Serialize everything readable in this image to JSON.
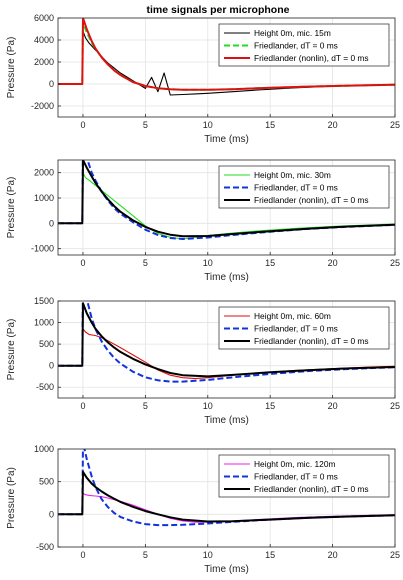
{
  "title": "time signals per microphone",
  "chart_data": [
    {
      "type": "line",
      "xlabel": "Time (ms)",
      "ylabel": "Pressure (Pa)",
      "xlim": [
        -2,
        25
      ],
      "ylim": [
        -3000,
        6000
      ],
      "xticks": [
        0,
        5,
        10,
        15,
        20,
        25
      ],
      "yticks": [
        -2000,
        0,
        2000,
        4000,
        6000
      ],
      "ytick_labels": [
        "-2000",
        "0",
        "2000",
        "4000",
        "6000"
      ],
      "legend": "top-right",
      "grid": true,
      "series": [
        {
          "name": "Height 0m, mic. 15m",
          "color": "#000000",
          "style": "solid",
          "x": [
            -2,
            -0.05,
            0,
            0.2,
            0.5,
            1,
            1.5,
            2,
            3,
            4,
            5,
            5.5,
            6,
            6.5,
            7,
            8,
            9,
            10,
            12,
            14,
            17,
            20,
            23,
            25
          ],
          "y": [
            0,
            0,
            4800,
            4200,
            3700,
            3100,
            2500,
            1900,
            1000,
            300,
            -400,
            600,
            -700,
            1000,
            -1000,
            -950,
            -900,
            -850,
            -700,
            -550,
            -350,
            -200,
            -80,
            -30
          ]
        },
        {
          "name": "Friedlander, dT = 0 ms",
          "color": "#22dd22",
          "style": "dashed",
          "x": [
            -2,
            -0.05,
            0,
            0.3,
            0.7,
            1,
            1.5,
            2,
            2.5,
            3,
            4,
            5,
            6,
            7,
            8,
            10,
            12,
            15,
            18,
            21,
            25
          ],
          "y": [
            0,
            0,
            5600,
            4700,
            3780,
            3200,
            2420,
            1780,
            1240,
            820,
            180,
            -180,
            -380,
            -480,
            -520,
            -530,
            -470,
            -350,
            -240,
            -150,
            -60
          ]
        },
        {
          "name": "Friedlander (nonlin), dT = 0 ms",
          "color": "#dd1111",
          "style": "solid",
          "x": [
            -2,
            -0.05,
            0,
            0.3,
            0.7,
            1,
            1.5,
            2,
            2.5,
            3,
            4,
            5,
            6,
            7,
            8,
            10,
            12,
            15,
            18,
            21,
            25
          ],
          "y": [
            0,
            0,
            6000,
            5000,
            3900,
            3250,
            2420,
            1780,
            1240,
            820,
            180,
            -180,
            -380,
            -480,
            -520,
            -530,
            -470,
            -350,
            -240,
            -150,
            -60
          ]
        }
      ]
    },
    {
      "type": "line",
      "xlabel": "Time (ms)",
      "ylabel": "Pressure (Pa)",
      "xlim": [
        -2,
        25
      ],
      "ylim": [
        -1250,
        2500
      ],
      "xticks": [
        0,
        5,
        10,
        15,
        20,
        25
      ],
      "yticks": [
        -1000,
        0,
        1000,
        2000
      ],
      "ytick_labels": [
        "-1000",
        "0",
        "1000",
        "2000"
      ],
      "legend": "top-right",
      "grid": true,
      "series": [
        {
          "name": "Height 0m, mic. 30m",
          "color": "#22dd22",
          "style": "solid",
          "x": [
            -2,
            -0.05,
            0,
            0.2,
            0.5,
            1,
            1.5,
            2,
            3,
            4,
            5,
            6,
            7,
            8,
            9,
            10,
            12,
            14,
            17,
            20,
            23,
            25
          ],
          "y": [
            0,
            0,
            2000,
            1800,
            1700,
            1500,
            1300,
            1100,
            700,
            300,
            -100,
            -400,
            -550,
            -620,
            -560,
            -480,
            -380,
            -300,
            -200,
            -120,
            -60,
            -30
          ]
        },
        {
          "name": "Friedlander, dT = 0 ms",
          "color": "#1133dd",
          "style": "dashed",
          "x": [
            -2,
            -0.05,
            0,
            0.3,
            0.7,
            1,
            1.5,
            2,
            2.5,
            3,
            4,
            5,
            6,
            7,
            8,
            10,
            12,
            15,
            18,
            21,
            25
          ],
          "y": [
            0,
            0,
            3200,
            2600,
            2000,
            1700,
            1250,
            900,
            600,
            380,
            50,
            -250,
            -460,
            -580,
            -620,
            -560,
            -460,
            -330,
            -220,
            -140,
            -60
          ]
        },
        {
          "name": "Friedlander (nonlin), dT = 0 ms",
          "color": "#000000",
          "style": "solid",
          "x": [
            -2,
            -0.05,
            0,
            0.3,
            0.7,
            1,
            1.5,
            2,
            2.5,
            3,
            4,
            5,
            6,
            7,
            8,
            10,
            12,
            15,
            18,
            21,
            25
          ],
          "y": [
            0,
            0,
            2500,
            2200,
            1850,
            1600,
            1250,
            950,
            680,
            460,
            120,
            -140,
            -330,
            -450,
            -510,
            -500,
            -420,
            -310,
            -210,
            -130,
            -55
          ]
        }
      ]
    },
    {
      "type": "line",
      "xlabel": "Time (ms)",
      "ylabel": "Pressure (Pa)",
      "xlim": [
        -2,
        25
      ],
      "ylim": [
        -750,
        1500
      ],
      "xticks": [
        0,
        5,
        10,
        15,
        20,
        25
      ],
      "yticks": [
        -500,
        0,
        500,
        1000,
        1500
      ],
      "ytick_labels": [
        "-500",
        "0",
        "500",
        "1000",
        "1500"
      ],
      "legend": "top-right",
      "grid": true,
      "series": [
        {
          "name": "Height 0m, mic. 60m",
          "color": "#dd1111",
          "style": "solid",
          "x": [
            -2,
            -0.05,
            0,
            0.2,
            0.5,
            1,
            1.5,
            2,
            3,
            4,
            5,
            6,
            7,
            8,
            9,
            10,
            12,
            14,
            17,
            20,
            23,
            25
          ],
          "y": [
            0,
            0,
            850,
            780,
            720,
            700,
            650,
            580,
            420,
            250,
            80,
            -100,
            -220,
            -280,
            -300,
            -280,
            -220,
            -170,
            -110,
            -70,
            -30,
            -15
          ]
        },
        {
          "name": "Friedlander, dT = 0 ms",
          "color": "#1133dd",
          "style": "dashed",
          "x": [
            -2,
            -0.05,
            0,
            0.3,
            0.7,
            1,
            1.5,
            2,
            2.5,
            3,
            4,
            5,
            6,
            7,
            8,
            10,
            12,
            15,
            18,
            21,
            25
          ],
          "y": [
            0,
            0,
            2000,
            1550,
            1100,
            850,
            560,
            350,
            180,
            50,
            -140,
            -270,
            -340,
            -370,
            -370,
            -330,
            -270,
            -190,
            -125,
            -80,
            -35
          ]
        },
        {
          "name": "Friedlander (nonlin), dT = 0 ms",
          "color": "#000000",
          "style": "solid",
          "x": [
            -2,
            -0.05,
            0,
            0.3,
            0.7,
            1,
            1.5,
            2,
            2.5,
            3,
            4,
            5,
            6,
            7,
            8,
            10,
            12,
            15,
            18,
            21,
            25
          ],
          "y": [
            0,
            0,
            1450,
            1220,
            1000,
            860,
            680,
            540,
            420,
            320,
            160,
            30,
            -80,
            -170,
            -220,
            -250,
            -215,
            -155,
            -105,
            -65,
            -30
          ]
        }
      ]
    },
    {
      "type": "line",
      "xlabel": "Time (ms)",
      "ylabel": "Pressure (Pa)",
      "xlim": [
        -2,
        25
      ],
      "ylim": [
        -500,
        1000
      ],
      "xticks": [
        0,
        5,
        10,
        15,
        20,
        25
      ],
      "yticks": [
        -500,
        0,
        500,
        1000
      ],
      "ytick_labels": [
        "-500",
        "0",
        "500",
        "1000"
      ],
      "legend": "top-right",
      "grid": true,
      "series": [
        {
          "name": "Height 0m, mic. 120m",
          "color": "#ee22ee",
          "style": "solid",
          "x": [
            -2,
            -0.05,
            0,
            0.2,
            0.5,
            1,
            1.5,
            2,
            3,
            4,
            5,
            6,
            7,
            8,
            9,
            10,
            12,
            14,
            17,
            20,
            23,
            25
          ],
          "y": [
            0,
            0,
            320,
            300,
            290,
            280,
            270,
            250,
            200,
            140,
            70,
            0,
            -60,
            -100,
            -120,
            -120,
            -100,
            -80,
            -50,
            -30,
            -15,
            -5
          ]
        },
        {
          "name": "Friedlander, dT = 0 ms",
          "color": "#1133dd",
          "style": "dashed",
          "x": [
            -2,
            -0.05,
            0,
            0.3,
            0.7,
            1,
            1.5,
            2,
            2.5,
            3,
            4,
            5,
            6,
            7,
            8,
            10,
            12,
            15,
            18,
            21,
            25
          ],
          "y": [
            0,
            0,
            1100,
            850,
            580,
            420,
            230,
            110,
            20,
            -40,
            -110,
            -150,
            -165,
            -165,
            -160,
            -140,
            -115,
            -80,
            -52,
            -33,
            -15
          ]
        },
        {
          "name": "Friedlander (nonlin), dT = 0 ms",
          "color": "#000000",
          "style": "solid",
          "x": [
            -2,
            -0.05,
            0,
            0.3,
            0.7,
            1,
            1.5,
            2,
            2.5,
            3,
            4,
            5,
            6,
            7,
            8,
            10,
            12,
            15,
            18,
            21,
            25
          ],
          "y": [
            0,
            0,
            650,
            560,
            470,
            420,
            350,
            290,
            240,
            190,
            115,
            50,
            0,
            -45,
            -80,
            -110,
            -105,
            -80,
            -55,
            -35,
            -15
          ]
        }
      ]
    }
  ]
}
